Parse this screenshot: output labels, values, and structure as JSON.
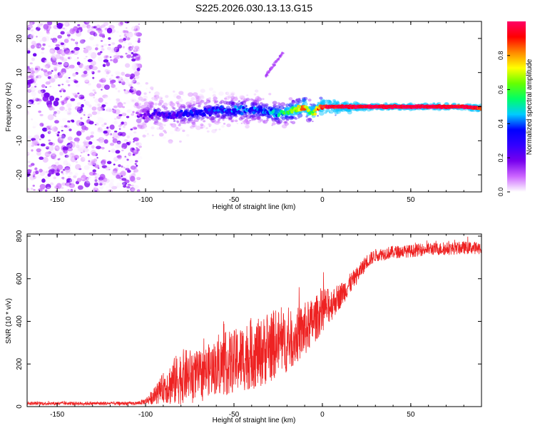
{
  "title": "S225.2026.030.13.13.G15",
  "colorbar": {
    "label": "Normalized spectral amplitude",
    "ticks": [
      "0.0",
      "0.2",
      "0.4",
      "0.6",
      "0.8"
    ],
    "tick_values": [
      0.0,
      0.2,
      0.4,
      0.6,
      0.8
    ],
    "range": [
      0.0,
      1.0
    ],
    "colormap": [
      "#ffffff",
      "#cc66ff",
      "#7700ee",
      "#3300ff",
      "#0000ff",
      "#00ccff",
      "#00ff66",
      "#66ff00",
      "#ffff00",
      "#ff8800",
      "#ff0000",
      "#ff0066"
    ]
  },
  "chart_data": [
    {
      "type": "heatmap",
      "title": "S225.2026.030.13.13.G15",
      "xlabel": "Height of straight line (km)",
      "ylabel": "Frequency (Hz)",
      "xlim": [
        -167,
        90
      ],
      "ylim": [
        -25,
        25
      ],
      "xticks": [
        -150,
        -100,
        -50,
        0,
        50
      ],
      "xtick_labels": [
        "-150",
        "-100",
        "-50",
        "0",
        "50"
      ],
      "yticks": [
        -20,
        -10,
        0,
        10,
        20
      ],
      "ytick_labels": [
        "-20",
        "-10",
        "0",
        "10",
        "20"
      ],
      "ridge": {
        "description": "dominant frequency ridge vs height",
        "x": [
          -104,
          -95,
          -85,
          -75,
          -65,
          -55,
          -45,
          -35,
          -30,
          -25,
          -20,
          -15,
          -10,
          -7,
          -5,
          -2,
          0,
          10,
          20,
          40,
          60,
          80,
          90
        ],
        "y": [
          -3,
          -2,
          -2.5,
          -2,
          -1.5,
          -1,
          -1,
          -1,
          -1.5,
          -2,
          -1.5,
          -1,
          0,
          -1.5,
          -1.5,
          0,
          0,
          0,
          0,
          0,
          0,
          0,
          -0.5
        ],
        "amplitude": [
          0.12,
          0.2,
          0.25,
          0.3,
          0.3,
          0.35,
          0.4,
          0.35,
          0.4,
          0.45,
          0.55,
          0.7,
          0.8,
          0.6,
          0.6,
          0.85,
          0.9,
          0.95,
          1.0,
          1.0,
          1.0,
          0.95,
          0.9
        ]
      },
      "noise_region": {
        "x": [
          -167,
          -103
        ],
        "amplitude_range": [
          0.0,
          0.2
        ]
      },
      "secondary_feature": {
        "x": [
          -32,
          -22
        ],
        "y": [
          9,
          16
        ],
        "amplitude": 0.1
      }
    },
    {
      "type": "line",
      "xlabel": "Height of straight line (km)",
      "ylabel": "SNR (10 * v/v)",
      "xlim": [
        -167,
        90
      ],
      "ylim": [
        0,
        810
      ],
      "xticks": [
        -150,
        -100,
        -50,
        0,
        50
      ],
      "xtick_labels": [
        "-150",
        "-100",
        "-50",
        "0",
        "50"
      ],
      "yticks": [
        0,
        200,
        400,
        600,
        800
      ],
      "ytick_labels": [
        "0",
        "200",
        "400",
        "600",
        "800"
      ],
      "series": [
        {
          "name": "SNR",
          "color": "#ee2222",
          "envelope_x": [
            -167,
            -130,
            -105,
            -100,
            -95,
            -90,
            -85,
            -80,
            -75,
            -70,
            -65,
            -60,
            -55,
            -50,
            -45,
            -40,
            -35,
            -30,
            -25,
            -20,
            -15,
            -10,
            -5,
            0,
            5,
            10,
            15,
            20,
            25,
            30,
            40,
            50,
            60,
            70,
            80,
            90
          ],
          "envelope_mean": [
            15,
            15,
            15,
            25,
            50,
            90,
            110,
            140,
            150,
            150,
            170,
            185,
            200,
            210,
            230,
            250,
            250,
            280,
            300,
            300,
            330,
            360,
            400,
            450,
            480,
            520,
            570,
            620,
            680,
            710,
            725,
            730,
            740,
            740,
            745,
            745
          ],
          "envelope_amplitude": [
            8,
            8,
            8,
            15,
            40,
            70,
            110,
            130,
            120,
            110,
            120,
            130,
            150,
            150,
            160,
            170,
            160,
            170,
            160,
            140,
            130,
            130,
            110,
            100,
            80,
            60,
            50,
            40,
            35,
            30,
            30,
            30,
            30,
            30,
            30,
            30
          ]
        }
      ]
    }
  ]
}
